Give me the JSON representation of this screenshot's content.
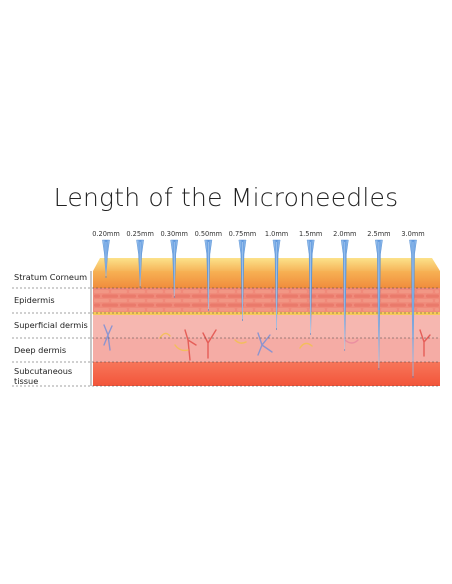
{
  "title": "Length of the Microneedles",
  "needles": [
    {
      "label": "0.20mm",
      "depth": 0.2
    },
    {
      "label": "0.25mm",
      "depth": 0.25
    },
    {
      "label": "0.30mm",
      "depth": 0.3
    },
    {
      "label": "0.50mm",
      "depth": 0.5
    },
    {
      "label": "0.75mm",
      "depth": 0.75
    },
    {
      "label": "1.0mm",
      "depth": 1.0
    },
    {
      "label": "1.5mm",
      "depth": 1.5
    },
    {
      "label": "2.0mm",
      "depth": 2.0
    },
    {
      "label": "2.5mm",
      "depth": 2.5
    },
    {
      "label": "3.0mm",
      "depth": 3.0
    }
  ],
  "layers": [
    {
      "label": "Stratum Corneum",
      "color": "#f4a24a"
    },
    {
      "label": "Epidermis",
      "color": "#f08a7a"
    },
    {
      "label": "Superficial dermis",
      "color": "#f6b3ad"
    },
    {
      "label": "Deep dermis",
      "color": "#f5aaa4"
    },
    {
      "label": "Subcutaneous tissue",
      "color": "#f46242"
    }
  ],
  "colors": {
    "needle": "#7fb2e8",
    "needle_tip": "#cfe3f6",
    "vessel_red": "#e2504a",
    "vessel_blue": "#7a8fd6",
    "nerve": "#f2c14e"
  }
}
